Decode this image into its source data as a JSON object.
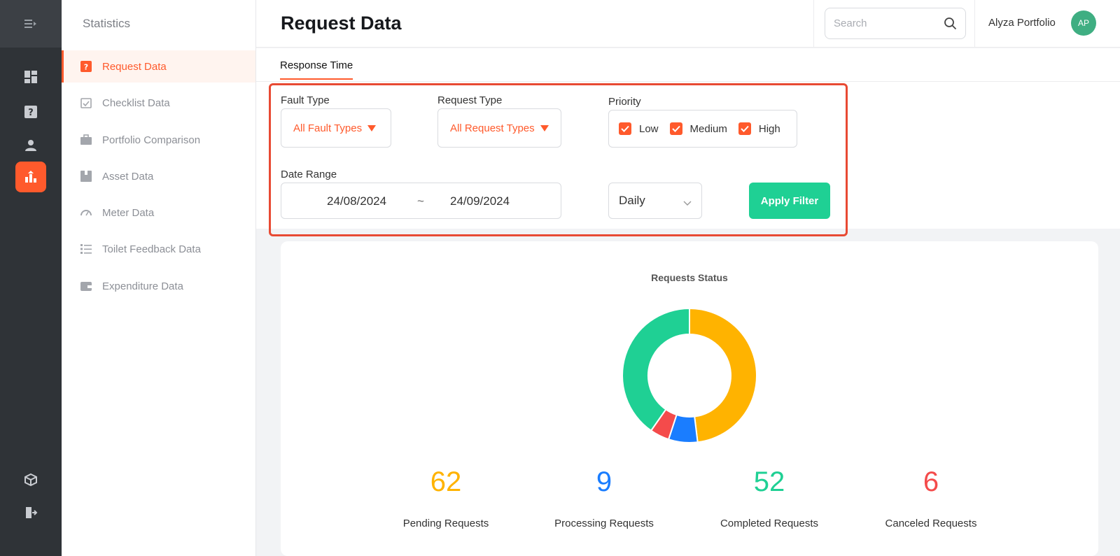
{
  "sidebar": {
    "title": "Statistics",
    "items": [
      {
        "label": "Request Data",
        "icon": "question-icon",
        "active": true
      },
      {
        "label": "Checklist Data",
        "icon": "checklist-icon"
      },
      {
        "label": "Portfolio Comparison",
        "icon": "briefcase-icon"
      },
      {
        "label": "Asset Data",
        "icon": "box-icon"
      },
      {
        "label": "Meter Data",
        "icon": "gauge-icon"
      },
      {
        "label": "Toilet Feedback Data",
        "icon": "list-icon"
      },
      {
        "label": "Expenditure Data",
        "icon": "wallet-icon"
      }
    ]
  },
  "header": {
    "title": "Request Data",
    "search_placeholder": "Search",
    "user_name": "Alyza Portfolio",
    "avatar_initials": "AP"
  },
  "tabs": [
    {
      "label": "Response Time",
      "active": true
    }
  ],
  "filters": {
    "fault_type": {
      "label": "Fault Type",
      "value": "All Fault Types"
    },
    "request_type": {
      "label": "Request Type",
      "value": "All Request Types"
    },
    "priority": {
      "label": "Priority",
      "options": [
        {
          "label": "Low",
          "checked": true
        },
        {
          "label": "Medium",
          "checked": true
        },
        {
          "label": "High",
          "checked": true
        }
      ]
    },
    "date_range": {
      "label": "Date Range",
      "start": "24/08/2024",
      "separator": "~",
      "end": "24/09/2024"
    },
    "granularity": {
      "value": "Daily"
    },
    "apply_label": "Apply Filter"
  },
  "colors": {
    "accent": "#ff5a2c",
    "pending": "#ffb300",
    "processing": "#1a7dff",
    "completed": "#1fd094",
    "canceled": "#f44b4b"
  },
  "stats": [
    {
      "value": "62",
      "label": "Pending Requests"
    },
    {
      "value": "9",
      "label": "Processing Requests"
    },
    {
      "value": "52",
      "label": "Completed Requests"
    },
    {
      "value": "6",
      "label": "Canceled Requests"
    }
  ],
  "chart_data": {
    "type": "pie",
    "title": "Requests Status",
    "categories": [
      "Pending Requests",
      "Processing Requests",
      "Canceled Requests",
      "Completed Requests"
    ],
    "values": [
      62,
      9,
      6,
      52
    ],
    "colors": [
      "#ffb300",
      "#1a7dff",
      "#f44b4b",
      "#1fd094"
    ],
    "donut": true
  }
}
